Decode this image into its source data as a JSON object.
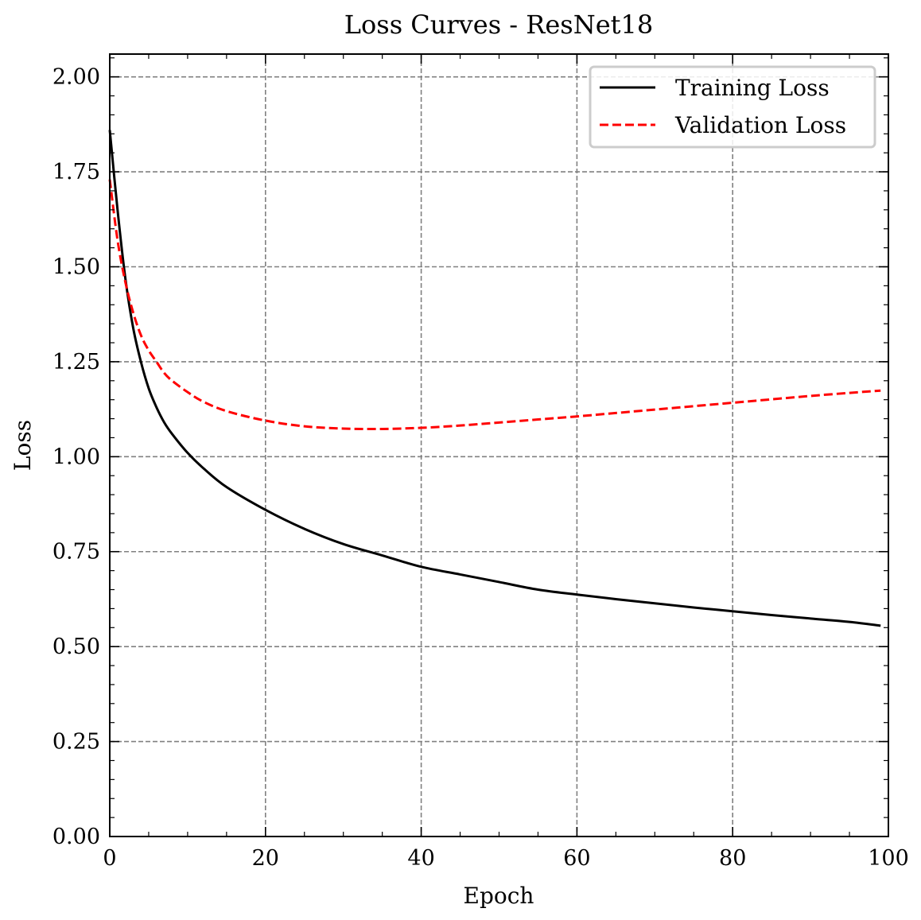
{
  "chart_data": {
    "type": "line",
    "title": "Loss Curves - ResNet18",
    "xlabel": "Epoch",
    "ylabel": "Loss",
    "xlim": [
      0,
      100
    ],
    "ylim": [
      0,
      2.06
    ],
    "xticks": [
      0,
      20,
      40,
      60,
      80,
      100
    ],
    "xtick_labels": [
      "0",
      "20",
      "40",
      "60",
      "80",
      "100"
    ],
    "yticks": [
      0,
      0.25,
      0.5,
      0.75,
      1.0,
      1.25,
      1.5,
      1.75,
      2.0
    ],
    "ytick_labels": [
      "0.00",
      "0.25",
      "0.50",
      "0.75",
      "1.00",
      "1.25",
      "1.50",
      "1.75",
      "2.00"
    ],
    "grid": true,
    "legend_position": "top-right",
    "x": [
      0,
      1,
      2,
      3,
      4,
      5,
      6,
      7,
      8,
      10,
      12,
      15,
      20,
      25,
      30,
      35,
      40,
      45,
      50,
      55,
      60,
      65,
      70,
      75,
      80,
      85,
      90,
      95,
      99
    ],
    "series": [
      {
        "name": "Training Loss",
        "color": "#000000",
        "style": "solid",
        "values": [
          1.86,
          1.65,
          1.47,
          1.34,
          1.25,
          1.18,
          1.13,
          1.09,
          1.06,
          1.01,
          0.97,
          0.92,
          0.86,
          0.81,
          0.77,
          0.74,
          0.71,
          0.69,
          0.67,
          0.65,
          0.637,
          0.625,
          0.614,
          0.603,
          0.593,
          0.583,
          0.574,
          0.565,
          0.555
        ]
      },
      {
        "name": "Validation Loss",
        "color": "#ff0000",
        "style": "dashed",
        "values": [
          1.73,
          1.57,
          1.46,
          1.38,
          1.32,
          1.28,
          1.25,
          1.22,
          1.2,
          1.17,
          1.145,
          1.12,
          1.095,
          1.08,
          1.074,
          1.073,
          1.076,
          1.082,
          1.09,
          1.098,
          1.106,
          1.115,
          1.124,
          1.133,
          1.142,
          1.151,
          1.16,
          1.168,
          1.174
        ]
      }
    ]
  }
}
